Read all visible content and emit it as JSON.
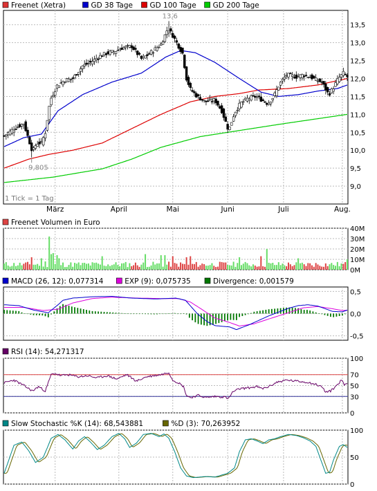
{
  "colors": {
    "price": "#000000",
    "gd38": "#0000cc",
    "gd100": "#dd0000",
    "gd200": "#00cc00",
    "volume_up": "#66dd66",
    "volume_down": "#dd4444",
    "macd": "#0000cc",
    "exp": "#dd00dd",
    "divergence": "#007700",
    "rsi": "#660066",
    "ref_70": "#dd4444",
    "ref_30": "#333399",
    "stoch_k": "#008888",
    "stoch_d": "#666600",
    "grid": "#bbbbbb",
    "frame": "#000000"
  },
  "legend_price": [
    {
      "label": "Freenet (Xetra)",
      "color": "#dd3333"
    },
    {
      "label": "GD 38 Tage",
      "color": "#0000cc"
    },
    {
      "label": "GD 100 Tage",
      "color": "#dd0000"
    },
    {
      "label": "GD 200 Tage",
      "color": "#00cc00"
    }
  ],
  "note_tick": "1 Tick = 1 Tag",
  "month_labels": [
    "März",
    "April",
    "Mai",
    "Juni",
    "Juli",
    "Aug."
  ],
  "chart_data": [
    {
      "type": "candlestick",
      "panel": "price",
      "ylim": [
        8.5,
        13.9
      ],
      "yticks": [
        "13,5",
        "13,0",
        "12,5",
        "12,0",
        "11,5",
        "11,0",
        "10,5",
        "10,0",
        "9,5",
        "9,0"
      ],
      "annotations": [
        {
          "label": "13,6",
          "x": 167
        },
        {
          "label": "9,805",
          "x": 29
        }
      ],
      "high_value": 13.6,
      "low_value": 9.805,
      "price_anchors": [
        [
          0,
          10.4
        ],
        [
          10,
          10.6
        ],
        [
          20,
          10.75
        ],
        [
          29,
          9.95
        ],
        [
          33,
          10.2
        ],
        [
          38,
          10.2
        ],
        [
          42,
          10.5
        ],
        [
          47,
          11.4
        ],
        [
          54,
          11.8
        ],
        [
          62,
          11.95
        ],
        [
          70,
          12.0
        ],
        [
          80,
          12.35
        ],
        [
          88,
          12.45
        ],
        [
          96,
          12.6
        ],
        [
          104,
          12.7
        ],
        [
          112,
          12.75
        ],
        [
          120,
          12.85
        ],
        [
          130,
          12.9
        ],
        [
          140,
          12.55
        ],
        [
          146,
          12.65
        ],
        [
          153,
          12.8
        ],
        [
          160,
          12.95
        ],
        [
          167,
          13.4
        ],
        [
          172,
          13.2
        ],
        [
          178,
          12.9
        ],
        [
          182,
          12.7
        ],
        [
          186,
          12.0
        ],
        [
          190,
          11.7
        ],
        [
          197,
          11.5
        ],
        [
          205,
          11.35
        ],
        [
          215,
          11.4
        ],
        [
          222,
          11.1
        ],
        [
          229,
          10.55
        ],
        [
          235,
          11.05
        ],
        [
          241,
          11.3
        ],
        [
          249,
          11.45
        ],
        [
          257,
          11.5
        ],
        [
          263,
          11.4
        ],
        [
          269,
          11.3
        ],
        [
          275,
          11.5
        ],
        [
          281,
          11.85
        ],
        [
          288,
          12.1
        ],
        [
          298,
          12.05
        ],
        [
          305,
          12.1
        ],
        [
          312,
          12.05
        ],
        [
          319,
          11.95
        ],
        [
          324,
          11.9
        ],
        [
          331,
          11.55
        ],
        [
          336,
          11.75
        ],
        [
          341,
          12.0
        ],
        [
          346,
          12.15
        ],
        [
          350,
          12.05
        ]
      ],
      "gd38_anchors": [
        [
          0,
          10.1
        ],
        [
          20,
          10.35
        ],
        [
          38,
          10.45
        ],
        [
          55,
          11.1
        ],
        [
          80,
          11.55
        ],
        [
          110,
          11.9
        ],
        [
          140,
          12.15
        ],
        [
          165,
          12.6
        ],
        [
          180,
          12.78
        ],
        [
          195,
          12.72
        ],
        [
          215,
          12.45
        ],
        [
          240,
          12.0
        ],
        [
          262,
          11.62
        ],
        [
          280,
          11.5
        ],
        [
          300,
          11.55
        ],
        [
          320,
          11.65
        ],
        [
          340,
          11.72
        ],
        [
          350,
          11.82
        ]
      ],
      "gd100_anchors": [
        [
          0,
          9.5
        ],
        [
          25,
          9.75
        ],
        [
          45,
          9.88
        ],
        [
          70,
          10.0
        ],
        [
          100,
          10.2
        ],
        [
          130,
          10.6
        ],
        [
          160,
          11.0
        ],
        [
          190,
          11.35
        ],
        [
          215,
          11.5
        ],
        [
          240,
          11.58
        ],
        [
          260,
          11.68
        ],
        [
          290,
          11.72
        ],
        [
          320,
          11.82
        ],
        [
          350,
          12.0
        ]
      ],
      "gd200_anchors": [
        [
          0,
          9.1
        ],
        [
          50,
          9.25
        ],
        [
          100,
          9.48
        ],
        [
          130,
          9.75
        ],
        [
          160,
          10.08
        ],
        [
          200,
          10.38
        ],
        [
          240,
          10.55
        ],
        [
          280,
          10.72
        ],
        [
          320,
          10.88
        ],
        [
          350,
          11.0
        ]
      ]
    },
    {
      "type": "bar",
      "panel": "volume",
      "title": "Freenet Volumen in Euro",
      "ylim": [
        0,
        40
      ],
      "yticks": [
        "40M",
        "30M",
        "20M",
        "10M",
        "0M"
      ],
      "base_volume": 6,
      "spikes": [
        [
          29,
          12
        ],
        [
          38,
          11
        ],
        [
          42,
          8
        ],
        [
          47,
          32
        ],
        [
          48,
          15
        ],
        [
          50,
          16
        ],
        [
          55,
          14
        ],
        [
          56,
          11
        ],
        [
          100,
          13
        ],
        [
          144,
          15
        ],
        [
          160,
          14
        ],
        [
          164,
          14
        ],
        [
          172,
          13
        ],
        [
          186,
          12
        ],
        [
          190,
          13
        ],
        [
          241,
          12
        ],
        [
          263,
          13
        ],
        [
          269,
          20
        ],
        [
          300,
          11
        ],
        [
          350,
          10
        ]
      ]
    },
    {
      "type": "line",
      "panel": "macd",
      "title": "MACD (26, 12)",
      "ylim": [
        -0.6,
        0.6
      ],
      "yticks": [
        "0,5",
        "0,0",
        "-0,5"
      ],
      "series": [
        {
          "name": "MACD (26, 12)",
          "value": "0,077314",
          "color": "#0000cc"
        },
        {
          "name": "EXP (9)",
          "value": "0,075735",
          "color": "#dd00dd"
        },
        {
          "name": "Divergence",
          "value": "0,001579",
          "color": "#007700"
        }
      ],
      "macd_anchors": [
        [
          0,
          0.2
        ],
        [
          15,
          0.18
        ],
        [
          30,
          0.08
        ],
        [
          45,
          0.02
        ],
        [
          55,
          0.2
        ],
        [
          60,
          0.3
        ],
        [
          70,
          0.35
        ],
        [
          90,
          0.38
        ],
        [
          110,
          0.39
        ],
        [
          130,
          0.35
        ],
        [
          155,
          0.33
        ],
        [
          175,
          0.35
        ],
        [
          185,
          0.3
        ],
        [
          197,
          0.0
        ],
        [
          207,
          -0.18
        ],
        [
          215,
          -0.27
        ],
        [
          230,
          -0.3
        ],
        [
          237,
          -0.36
        ],
        [
          250,
          -0.25
        ],
        [
          270,
          -0.05
        ],
        [
          290,
          0.12
        ],
        [
          300,
          0.18
        ],
        [
          310,
          0.2
        ],
        [
          320,
          0.17
        ],
        [
          335,
          0.05
        ],
        [
          345,
          0.04
        ],
        [
          350,
          0.08
        ]
      ],
      "exp_anchors": [
        [
          0,
          0.14
        ],
        [
          20,
          0.14
        ],
        [
          40,
          0.07
        ],
        [
          55,
          0.1
        ],
        [
          70,
          0.24
        ],
        [
          90,
          0.34
        ],
        [
          110,
          0.37
        ],
        [
          135,
          0.35
        ],
        [
          160,
          0.34
        ],
        [
          178,
          0.34
        ],
        [
          190,
          0.26
        ],
        [
          200,
          0.12
        ],
        [
          215,
          -0.1
        ],
        [
          230,
          -0.2
        ],
        [
          240,
          -0.28
        ],
        [
          255,
          -0.23
        ],
        [
          270,
          -0.12
        ],
        [
          290,
          0.02
        ],
        [
          305,
          0.13
        ],
        [
          320,
          0.16
        ],
        [
          335,
          0.11
        ],
        [
          345,
          0.07
        ],
        [
          350,
          0.075
        ]
      ]
    },
    {
      "type": "line",
      "panel": "rsi",
      "title": "RSI (14)",
      "ylim": [
        0,
        100
      ],
      "yticks": [
        "100",
        "70",
        "50",
        "30",
        "0"
      ],
      "series": [
        {
          "name": "RSI (14)",
          "value": "54,271317",
          "color": "#660066"
        }
      ],
      "reference_lines": [
        70,
        30
      ],
      "rsi_anchors": [
        [
          0,
          55
        ],
        [
          10,
          60
        ],
        [
          20,
          50
        ],
        [
          29,
          40
        ],
        [
          35,
          48
        ],
        [
          42,
          40
        ],
        [
          48,
          70
        ],
        [
          52,
          72
        ],
        [
          58,
          68
        ],
        [
          65,
          70
        ],
        [
          75,
          66
        ],
        [
          85,
          68
        ],
        [
          95,
          64
        ],
        [
          105,
          68
        ],
        [
          115,
          62
        ],
        [
          125,
          70
        ],
        [
          135,
          58
        ],
        [
          145,
          66
        ],
        [
          160,
          70
        ],
        [
          168,
          74
        ],
        [
          172,
          60
        ],
        [
          178,
          55
        ],
        [
          183,
          48
        ],
        [
          186,
          32
        ],
        [
          190,
          28
        ],
        [
          198,
          32
        ],
        [
          206,
          28
        ],
        [
          215,
          30
        ],
        [
          225,
          29
        ],
        [
          229,
          26
        ],
        [
          233,
          38
        ],
        [
          240,
          44
        ],
        [
          250,
          46
        ],
        [
          258,
          48
        ],
        [
          263,
          44
        ],
        [
          270,
          48
        ],
        [
          278,
          56
        ],
        [
          288,
          60
        ],
        [
          298,
          58
        ],
        [
          310,
          56
        ],
        [
          318,
          52
        ],
        [
          324,
          48
        ],
        [
          328,
          38
        ],
        [
          333,
          40
        ],
        [
          338,
          48
        ],
        [
          344,
          60
        ],
        [
          347,
          52
        ],
        [
          350,
          54
        ]
      ]
    },
    {
      "type": "line",
      "panel": "stochastic",
      "title": "Slow Stochastic %K (14)",
      "ylim": [
        0,
        100
      ],
      "yticks": [
        "100",
        "50",
        "0"
      ],
      "series": [
        {
          "name": "Slow Stochastic %K (14)",
          "value": "68,543881",
          "color": "#008888"
        },
        {
          "name": "%D (3)",
          "value": "70,263952",
          "color": "#666600"
        }
      ],
      "stoch_anchors": [
        [
          0,
          20
        ],
        [
          10,
          72
        ],
        [
          18,
          78
        ],
        [
          25,
          62
        ],
        [
          32,
          40
        ],
        [
          40,
          50
        ],
        [
          48,
          85
        ],
        [
          55,
          92
        ],
        [
          62,
          82
        ],
        [
          70,
          65
        ],
        [
          76,
          80
        ],
        [
          82,
          88
        ],
        [
          88,
          78
        ],
        [
          95,
          64
        ],
        [
          102,
          72
        ],
        [
          110,
          88
        ],
        [
          117,
          94
        ],
        [
          123,
          84
        ],
        [
          128,
          68
        ],
        [
          135,
          76
        ],
        [
          142,
          92
        ],
        [
          150,
          94
        ],
        [
          158,
          88
        ],
        [
          163,
          93
        ],
        [
          168,
          85
        ],
        [
          174,
          60
        ],
        [
          180,
          30
        ],
        [
          186,
          15
        ],
        [
          193,
          12
        ],
        [
          205,
          14
        ],
        [
          215,
          13
        ],
        [
          228,
          20
        ],
        [
          235,
          30
        ],
        [
          240,
          60
        ],
        [
          246,
          82
        ],
        [
          252,
          84
        ],
        [
          258,
          80
        ],
        [
          264,
          75
        ],
        [
          270,
          82
        ],
        [
          276,
          84
        ],
        [
          282,
          88
        ],
        [
          290,
          92
        ],
        [
          298,
          90
        ],
        [
          305,
          86
        ],
        [
          312,
          80
        ],
        [
          318,
          70
        ],
        [
          324,
          40
        ],
        [
          328,
          20
        ],
        [
          332,
          22
        ],
        [
          336,
          45
        ],
        [
          342,
          70
        ],
        [
          346,
          73
        ],
        [
          350,
          68
        ]
      ]
    }
  ]
}
